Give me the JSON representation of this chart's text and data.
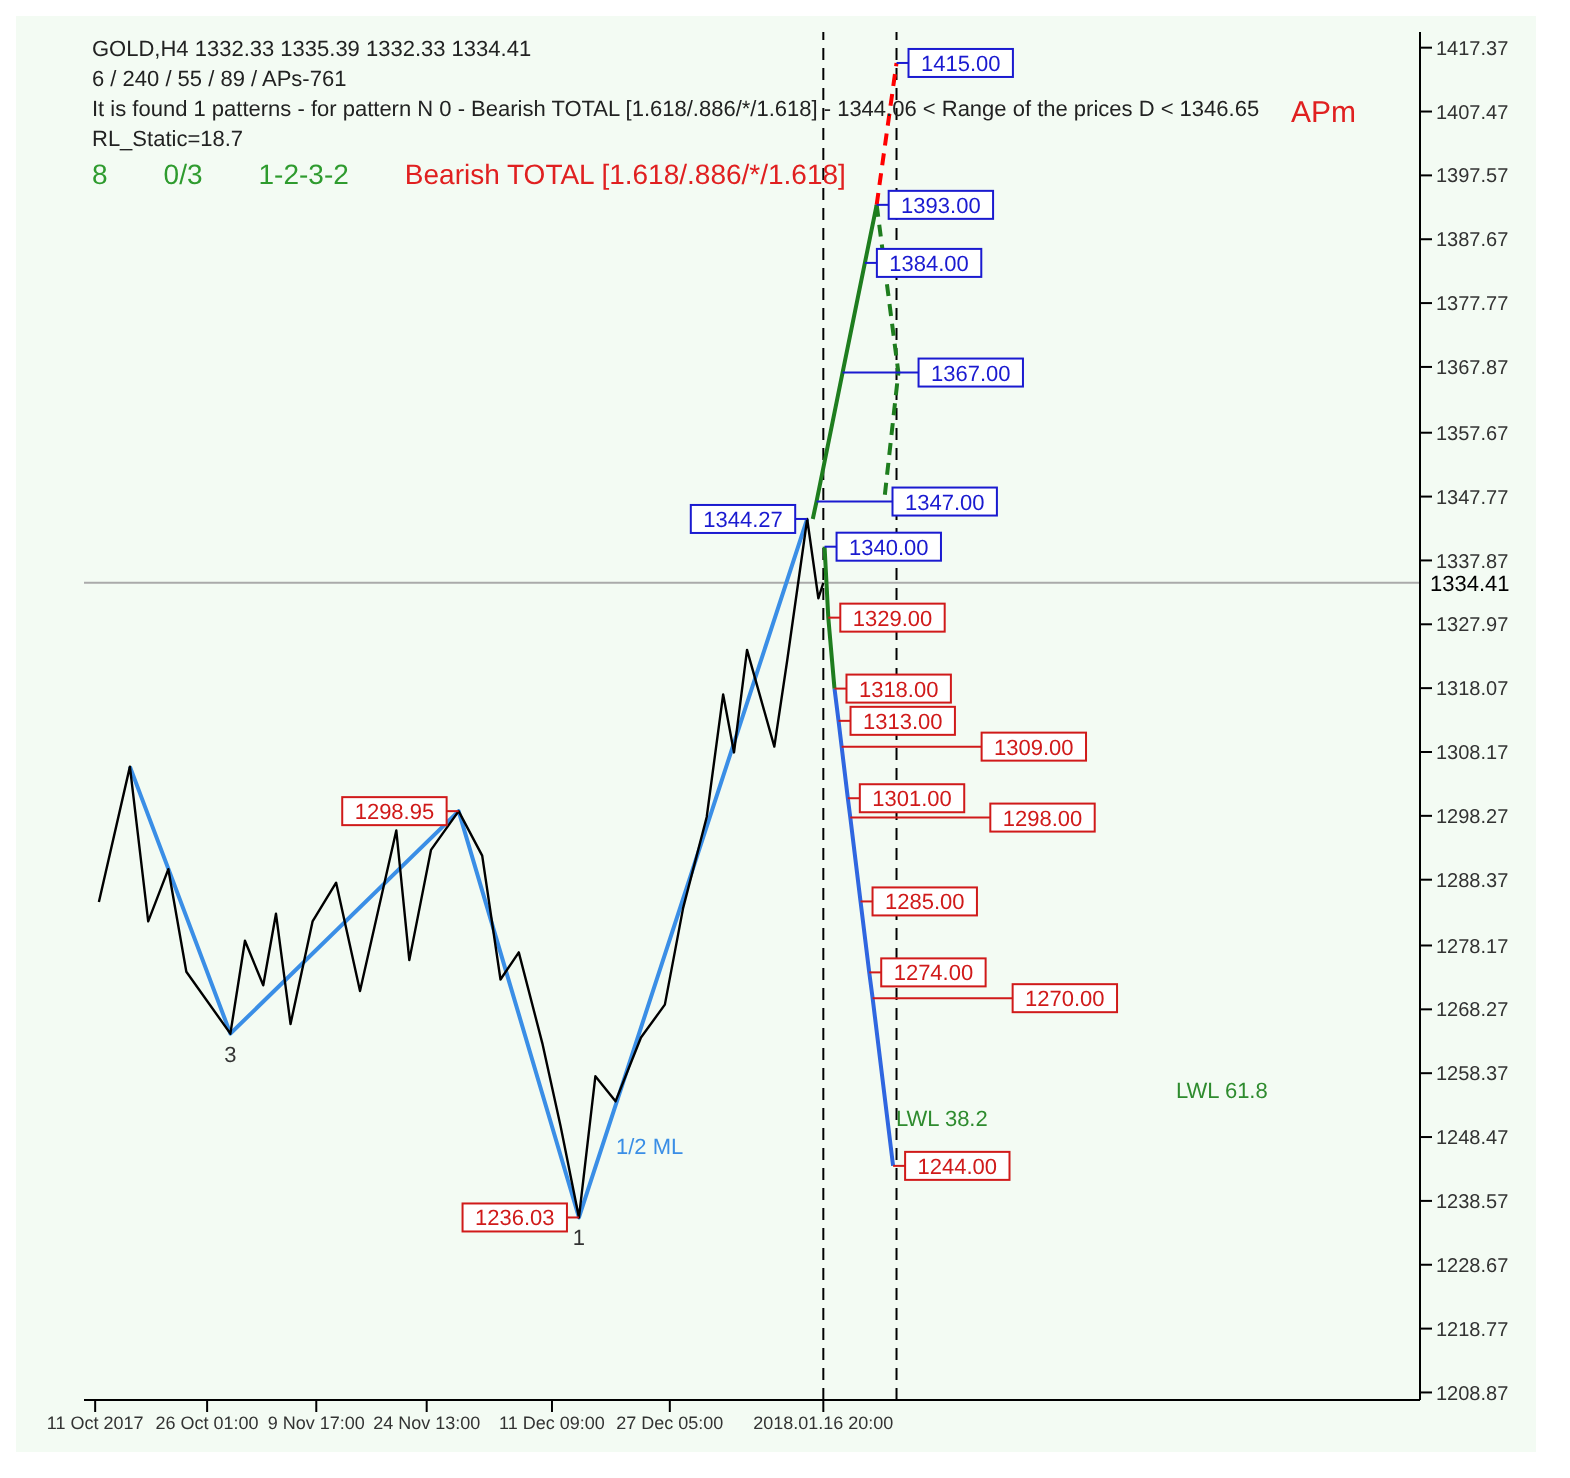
{
  "chart_data": {
    "type": "line",
    "title": "GOLD,H4  1332.33 1335.39 1332.33 1334.41",
    "subtitle": "6 / 240 / 55 / 89 / APs-761",
    "xlim": [
      "2017-10-09T12:00",
      "2018-04-07T00:00"
    ],
    "xticks": [
      {
        "value": "2017-10-11T00:00",
        "label": "11 Oct 2017"
      },
      {
        "value": "2017-10-26T01:00",
        "label": "26 Oct 01:00"
      },
      {
        "value": "2017-11-09T17:00",
        "label": "9 Nov 17:00"
      },
      {
        "value": "2017-11-24T13:00",
        "label": "24 Nov 13:00"
      },
      {
        "value": "2017-12-11T09:00",
        "label": "11 Dec 09:00"
      },
      {
        "value": "2017-12-27T05:00",
        "label": "27 Dec 05:00"
      },
      {
        "value": "2018-01-16T20:00",
        "label": "2018.01.16 20:00"
      }
    ],
    "ylim": [
      1207.7,
      1419.8
    ],
    "yticks": [
      1208.87,
      1218.77,
      1228.67,
      1238.57,
      1248.47,
      1258.37,
      1268.27,
      1278.17,
      1288.37,
      1298.27,
      1308.17,
      1318.07,
      1327.97,
      1337.87,
      1347.77,
      1357.67,
      1367.87,
      1377.77,
      1387.67,
      1397.57,
      1407.47,
      1417.37
    ],
    "legend": false,
    "marker": "none",
    "series": [
      {
        "color": "#000000",
        "x": [
          "2017-10-11T12:00",
          "2017-10-15T16:00",
          "2017-10-18T03:00",
          "2017-10-20T20:00",
          "2017-10-23T06:00",
          "2017-10-29T04:00",
          "2017-10-31T03:00",
          "2017-11-02T14:00",
          "2017-11-04T07:00",
          "2017-11-06T06:00",
          "2017-11-09T05:00",
          "2017-11-12T09:00",
          "2017-11-15T14:00",
          "2017-11-20T11:00",
          "2017-11-22T05:00",
          "2017-11-25T03:00",
          "2017-11-28T20:00",
          "2017-12-02T00:00",
          "2017-12-04T11:00",
          "2017-12-06T22:00",
          "2017-12-10T02:00",
          "2017-12-12T13:00",
          "2017-12-15T00:00",
          "2017-12-17T05:00",
          "2017-12-19T22:00",
          "2017-12-23T08:00",
          "2017-12-26T13:00",
          "2017-12-29T00:00",
          "2018-01-01T04:00",
          "2018-01-03T09:00",
          "2018-01-04T20:00",
          "2018-01-06T14:00",
          "2018-01-10T06:00",
          "2018-01-11T23:00",
          "2018-01-14T16:00",
          "2018-01-16T04:00",
          "2018-01-16T20:00"
        ],
        "values": [
          1284.9,
          1305.9,
          1281.9,
          1290.0,
          1274.1,
          1264.5,
          1278.9,
          1272.0,
          1283.1,
          1266.0,
          1281.9,
          1287.9,
          1271.1,
          1296.0,
          1275.9,
          1293.0,
          1299.0,
          1292.1,
          1272.9,
          1277.1,
          1263.0,
          1250.1,
          1236.0,
          1257.9,
          1254.0,
          1263.9,
          1269.0,
          1284.0,
          1298.1,
          1317.1,
          1308.1,
          1324.0,
          1309.0,
          1322.2,
          1344.3,
          1332.0,
          1334.4
        ]
      },
      {
        "color": "#3a8ee6",
        "x": [
          "2017-10-15T16:00",
          "2017-10-29T04:00",
          "2017-11-28T20:00",
          "2017-12-15T00:00",
          "2018-01-14T16:00"
        ],
        "values": [
          1305.9,
          1264.5,
          1299.0,
          1236.0,
          1344.3
        ]
      },
      {
        "color": "#1e7d1e",
        "x": [
          "2018-01-15T10:00",
          "2018-01-15T22:00",
          "2018-01-19T10:00",
          "2018-01-22T10:00",
          "2018-01-24T00:00"
        ],
        "values": [
          1344.3,
          1347,
          1367,
          1384,
          1393
        ]
      },
      {
        "color": "#ff0000",
        "line_style": "dashed",
        "x": [
          "2018-01-24T00:00",
          "2018-01-26T16:00"
        ],
        "values": [
          1393,
          1415
        ]
      },
      {
        "color": "#1e7d1e",
        "line_style": "dashed",
        "x": [
          "2018-01-24T00:00",
          "2018-01-26T22:00",
          "2018-01-25T00:00"
        ],
        "values": [
          1393,
          1367,
          1347
        ]
      },
      {
        "color": "#1e7d1e",
        "x": [
          "2018-01-17T00:00",
          "2018-01-17T12:00",
          "2018-01-18T08:00"
        ],
        "values": [
          1340,
          1329,
          1318
        ]
      },
      {
        "color": "#2f66e0",
        "x": [
          "2018-01-18T08:00",
          "2018-01-18T21:00",
          "2018-01-19T07:00",
          "2018-01-20T03:00",
          "2018-01-20T11:00",
          "2018-01-21T20:00",
          "2018-01-23T00:00",
          "2018-01-23T11:00",
          "2018-01-26T05:00"
        ],
        "values": [
          1318,
          1313,
          1309,
          1301,
          1298,
          1285,
          1274,
          1270,
          1244
        ]
      }
    ],
    "ref_lines": [
      {
        "axis": "y",
        "value": 1334.41,
        "label": "1334.41",
        "color": "#aaaaaa",
        "line_style": "solid"
      },
      {
        "axis": "x",
        "value": "2018-01-16T20:00",
        "color": "#000000",
        "line_style": "dashed"
      },
      {
        "axis": "x",
        "value": "2018-01-26T16:00",
        "color": "#000000",
        "line_style": "dashed"
      }
    ],
    "annotations": [
      "It is found 1 patterns  -  for pattern N 0 - Bearish TOTAL [1.618/.886/*/1.618] - 1344.06 < Range of the prices D < 1346.65",
      "RL_Static=18.7",
      "8",
      "0/3",
      "1-2-3-2",
      "Bearish TOTAL [1.618/.886/*/1.618]",
      "APm",
      "1/2 ML",
      "LWL 38.2",
      "LWL 61.8",
      {
        "text": "1415.00",
        "x": "2018-01-26T16:00",
        "y": 1415
      },
      {
        "text": "1393.00",
        "x": "2018-01-24T00:00",
        "y": 1393
      },
      {
        "text": "1384.00",
        "x": "2018-01-22T10:00",
        "y": 1384
      },
      {
        "text": "1367.00",
        "x": "2018-01-19T10:00",
        "y": 1367
      },
      {
        "text": "1347.00",
        "x": "2018-01-15T22:00",
        "y": 1347
      },
      {
        "text": "1344.27",
        "x": "2018-01-14T16:00",
        "y": 1344.3
      },
      {
        "text": "1340.00",
        "x": "2018-01-17T00:00",
        "y": 1340
      },
      {
        "text": "1329.00",
        "x": "2018-01-17T12:00",
        "y": 1329
      },
      {
        "text": "1318.00",
        "x": "2018-01-18T08:00",
        "y": 1318
      },
      {
        "text": "1313.00",
        "x": "2018-01-18T21:00",
        "y": 1313
      },
      {
        "text": "1309.00",
        "x": "2018-01-19T07:00",
        "y": 1309
      },
      {
        "text": "1301.00",
        "x": "2018-01-20T03:00",
        "y": 1301
      },
      {
        "text": "1298.95",
        "x": "2017-11-28T20:00",
        "y": 1299.0
      },
      {
        "text": "1298.00",
        "x": "2018-01-20T11:00",
        "y": 1298
      },
      {
        "text": "1285.00",
        "x": "2018-01-21T20:00",
        "y": 1285
      },
      {
        "text": "1274.00",
        "x": "2018-01-23T00:00",
        "y": 1274
      },
      {
        "text": "1270.00",
        "x": "2018-01-23T11:00",
        "y": 1270
      },
      {
        "text": "1244.00",
        "x": "2018-01-26T05:00",
        "y": 1244
      },
      {
        "text": "1236.03",
        "x": "2017-12-15T00:00",
        "y": 1236.0
      },
      {
        "text": "3",
        "x": "2017-10-29T04:00",
        "y": 1264.5
      },
      {
        "text": "1",
        "x": "2017-12-15T00:00",
        "y": 1236.0
      }
    ]
  }
}
